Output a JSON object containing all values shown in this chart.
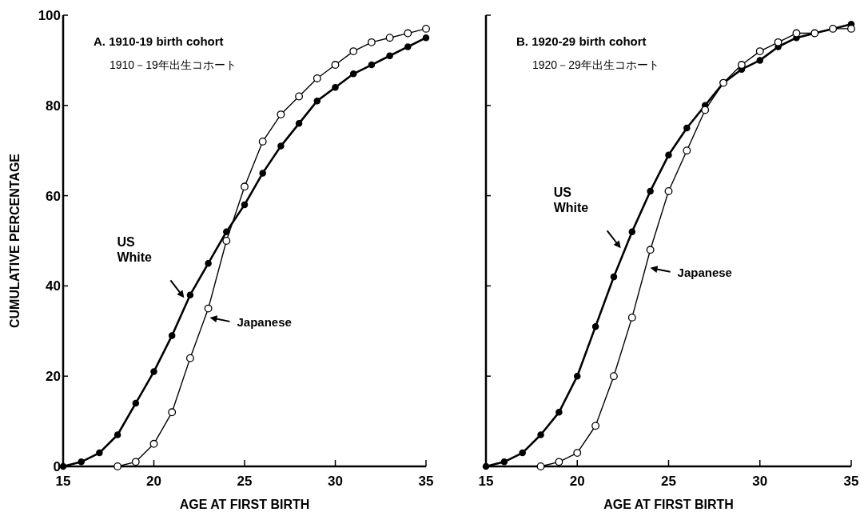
{
  "chart_data": [
    {
      "type": "line",
      "title": "A. 1910-19 birth cohort",
      "subtitle": "1910－19年出生コホート",
      "xlabel": "AGE AT FIRST BIRTH",
      "ylabel": "CUMULATIVE PERCENTAGE",
      "xlim": [
        15,
        35
      ],
      "ylim": [
        0,
        100
      ],
      "xticks": [
        15,
        20,
        25,
        30,
        35
      ],
      "yticks": [
        0,
        20,
        40,
        60,
        80,
        100
      ],
      "marker": "circle",
      "line_style": "solid",
      "grid": false,
      "series": [
        {
          "color": "#000000",
          "x": [
            15,
            16,
            17,
            18,
            19,
            20,
            21,
            22,
            23,
            24,
            25,
            26,
            27,
            28,
            29,
            30,
            31,
            32,
            33,
            34,
            35
          ],
          "values": [
            0,
            1,
            3,
            7,
            14,
            21,
            29,
            38,
            45,
            52,
            58,
            65,
            71,
            76,
            81,
            84,
            87,
            89,
            91,
            93,
            95
          ]
        },
        {
          "color": "#000000",
          "x": [
            18,
            19,
            20,
            21,
            22,
            23,
            24,
            25,
            26,
            27,
            28,
            29,
            30,
            31,
            32,
            33,
            34,
            35
          ],
          "values": [
            0,
            1,
            5,
            12,
            24,
            35,
            50,
            62,
            72,
            78,
            82,
            86,
            89,
            92,
            94,
            95,
            96,
            97
          ]
        }
      ],
      "annotations": [
        "US White",
        "Japanese"
      ]
    },
    {
      "type": "line",
      "title": "B. 1920-29 birth cohort",
      "subtitle": "1920－29年出生コホート",
      "xlabel": "AGE AT FIRST BIRTH",
      "xlim": [
        15,
        35
      ],
      "ylim": [
        0,
        100
      ],
      "xticks": [
        15,
        20,
        25,
        30,
        35
      ],
      "yticks": [
        0,
        20,
        40,
        60,
        80,
        100
      ],
      "tick_labels": "x",
      "marker": "circle",
      "line_style": "solid",
      "grid": false,
      "series": [
        {
          "color": "#000000",
          "x": [
            15,
            16,
            17,
            18,
            19,
            20,
            21,
            22,
            23,
            24,
            25,
            26,
            27,
            28,
            29,
            30,
            31,
            32,
            33,
            34,
            35
          ],
          "values": [
            0,
            1,
            3,
            7,
            12,
            20,
            31,
            42,
            52,
            61,
            69,
            75,
            80,
            85,
            88,
            90,
            93,
            95,
            96,
            97,
            98
          ]
        },
        {
          "color": "#000000",
          "x": [
            18,
            19,
            20,
            21,
            22,
            23,
            24,
            25,
            26,
            27,
            28,
            29,
            30,
            31,
            32,
            33,
            34,
            35
          ],
          "values": [
            0,
            1,
            3,
            9,
            20,
            33,
            48,
            61,
            70,
            79,
            85,
            89,
            92,
            94,
            96,
            96,
            97,
            97
          ]
        }
      ],
      "annotations": [
        "US White",
        "Japanese"
      ]
    }
  ]
}
